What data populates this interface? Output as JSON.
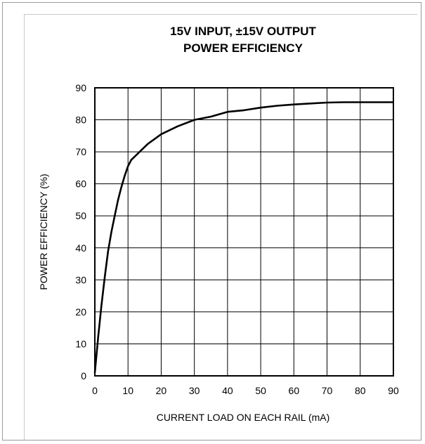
{
  "chart_data": {
    "type": "line",
    "title": "15V INPUT, ±15V OUTPUT",
    "subtitle": "POWER EFFICIENCY",
    "xlabel": "CURRENT LOAD ON EACH RAIL (mA)",
    "ylabel": "POWER EFFICIENCY (%)",
    "xlim": [
      0,
      90
    ],
    "ylim": [
      0,
      90
    ],
    "xticks": [
      "0",
      "10",
      "20",
      "30",
      "40",
      "50",
      "60",
      "70",
      "80",
      "90"
    ],
    "yticks": [
      "0",
      "10",
      "20",
      "30",
      "40",
      "50",
      "60",
      "70",
      "80",
      "90"
    ],
    "grid": true,
    "series": [
      {
        "x": [
          0,
          1,
          2,
          3,
          4,
          5,
          6,
          7,
          8,
          9,
          10,
          11,
          12,
          14,
          16,
          18,
          20,
          25,
          30,
          35,
          40,
          45,
          50,
          55,
          60,
          65,
          70,
          75,
          80,
          85,
          90
        ],
        "y": [
          1,
          12,
          22,
          31,
          39,
          45,
          50,
          55,
          59,
          62.5,
          65.5,
          67.5,
          68.5,
          70.5,
          72.5,
          74,
          75.5,
          78,
          80,
          81,
          82.5,
          83,
          83.8,
          84.4,
          84.8,
          85.1,
          85.4,
          85.5,
          85.5,
          85.5,
          85.5
        ]
      }
    ],
    "colors": {
      "line": "#000000",
      "grid": "#000000",
      "frame": "#9a9a9a"
    }
  }
}
